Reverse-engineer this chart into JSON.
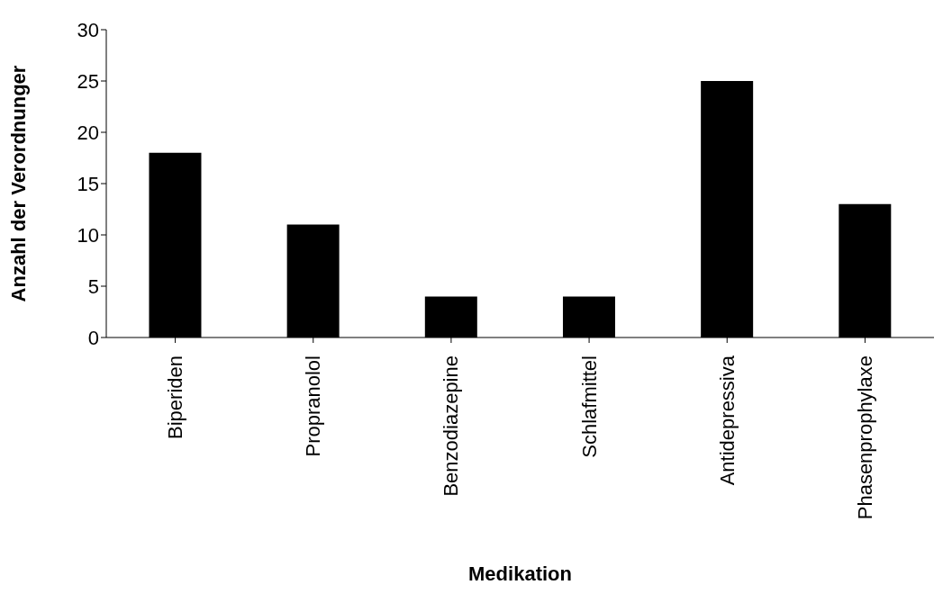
{
  "chart_data": {
    "type": "bar",
    "xlabel": "Medikation",
    "ylabel": "Anzahl der Verordnunger",
    "categories": [
      "Biperiden",
      "Propranolol",
      "Benzodiazepine",
      "Schlafmittel",
      "Antidepressiva",
      "Phasenprophylaxe"
    ],
    "values": [
      18,
      11,
      4,
      4,
      25,
      13
    ],
    "color": "#000000",
    "ylim": [
      0,
      30
    ],
    "yticks": [
      0,
      5,
      10,
      15,
      20,
      25,
      30
    ]
  }
}
